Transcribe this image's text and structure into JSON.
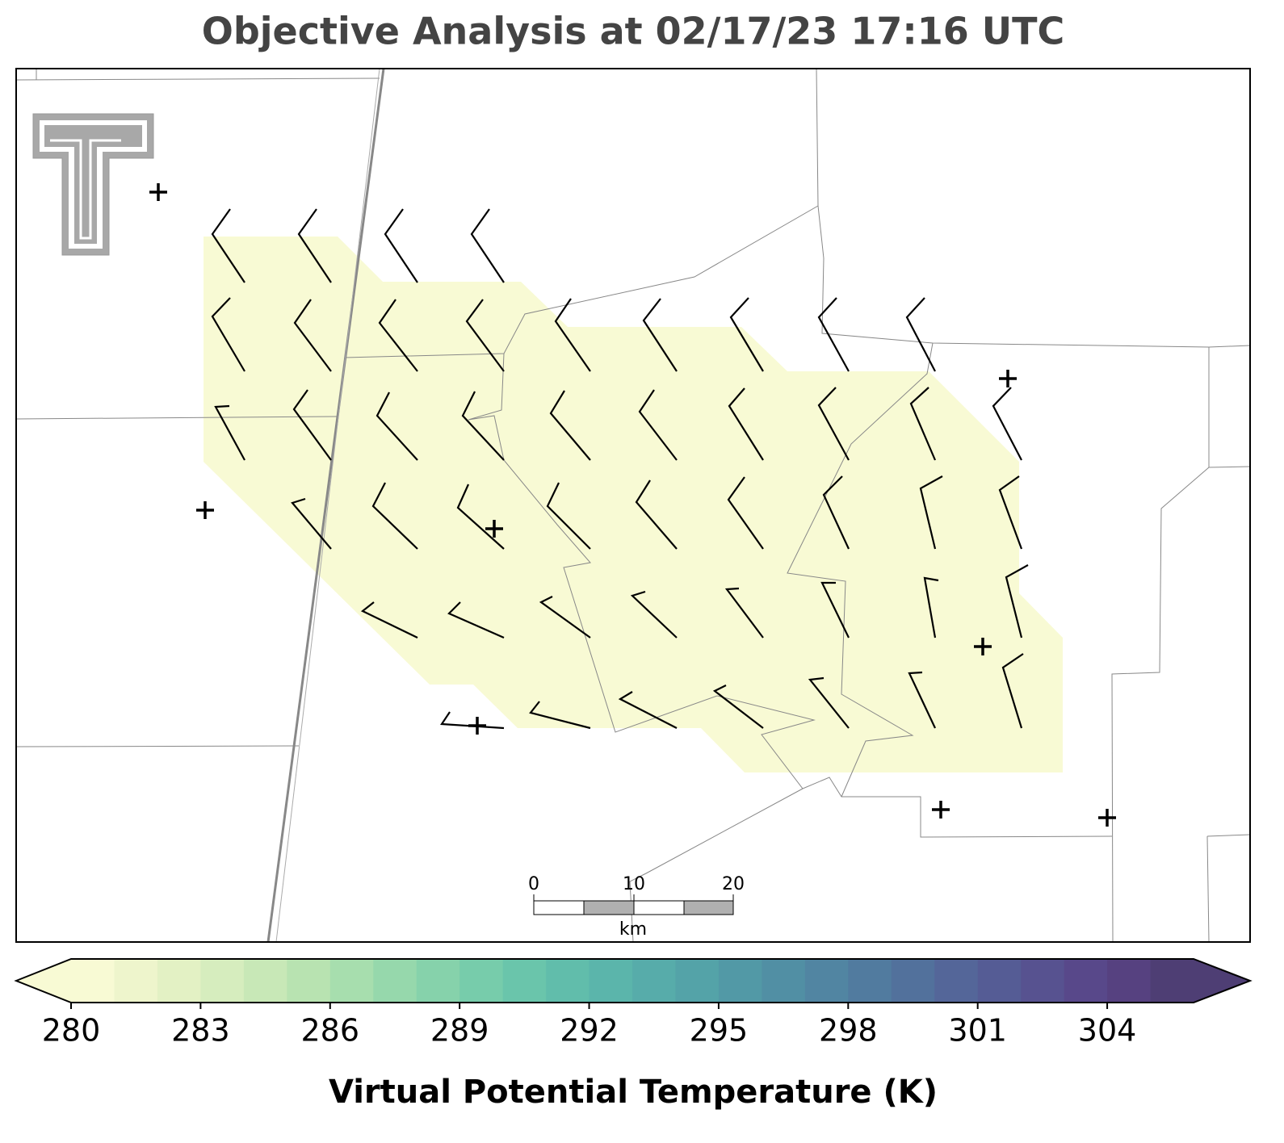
{
  "title": "Objective Analysis at 02/17/23 17:16 UTC",
  "colorbar": {
    "label": "Virtual Potential Temperature (K)",
    "lim": [
      280,
      306
    ],
    "ticks": [
      280,
      283,
      286,
      289,
      292,
      295,
      298,
      301,
      304
    ],
    "colors": [
      "#f8fad4",
      "#eef5cc",
      "#e3f1c4",
      "#d6edbe",
      "#c8e8b7",
      "#b8e3b1",
      "#a7deae",
      "#96d8ac",
      "#86d2ab",
      "#77ccab",
      "#6ac5ab",
      "#61bdab",
      "#5bb5ab",
      "#57acaa",
      "#54a3a8",
      "#5299a6",
      "#518fa4",
      "#5185a2",
      "#517b9f",
      "#52719c",
      "#546699",
      "#555c95",
      "#575290",
      "#58488a",
      "#564180",
      "#4e3e74"
    ]
  },
  "scale_bar": {
    "labels": [
      "0",
      "10",
      "20"
    ],
    "unit": "km"
  }
}
